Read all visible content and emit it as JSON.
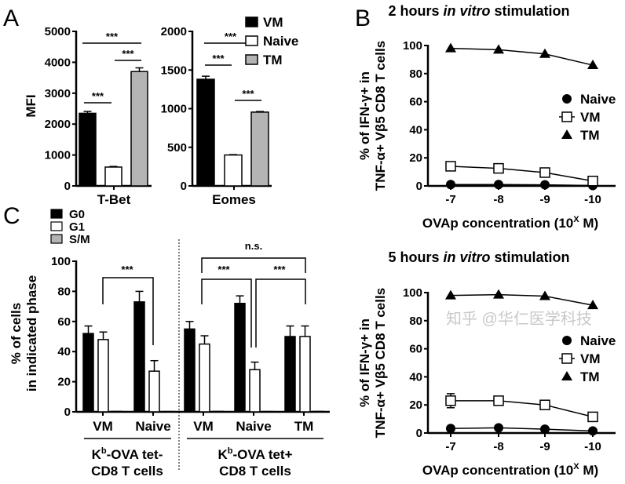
{
  "panel_labels": {
    "a": "A",
    "b": "B",
    "c": "C"
  },
  "watermark": "知乎 @华仁医学科技",
  "colors": {
    "VM": "#000000",
    "Naive": "#ffffff",
    "TM": "#b4b4b4",
    "G0": "#000000",
    "G1": "#ffffff",
    "S/M": "#b4b4b4"
  },
  "chart_data": [
    {
      "id": "A-tbet",
      "type": "bar",
      "ylabel": "MFI",
      "categories": [
        "T-Bet"
      ],
      "series": [
        {
          "name": "VM",
          "values": [
            2350
          ],
          "error": [
            60
          ]
        },
        {
          "name": "Naive",
          "values": [
            610
          ],
          "error": [
            20
          ]
        },
        {
          "name": "TM",
          "values": [
            3700
          ],
          "error": [
            120
          ]
        }
      ],
      "ylim": [
        0,
        5000
      ],
      "yticks": [
        "0",
        "1000",
        "2000",
        "3000",
        "4000",
        "5000"
      ],
      "significance": [
        {
          "pair": [
            "VM",
            "Naive"
          ],
          "label": "***"
        },
        {
          "pair": [
            "Naive",
            "TM"
          ],
          "label": "***"
        },
        {
          "pair": [
            "VM",
            "TM"
          ],
          "label": "***"
        }
      ]
    },
    {
      "id": "A-eomes",
      "type": "bar",
      "categories": [
        "Eomes"
      ],
      "series": [
        {
          "name": "VM",
          "values": [
            1380
          ],
          "error": [
            40
          ]
        },
        {
          "name": "Naive",
          "values": [
            400
          ],
          "error": [
            5
          ]
        },
        {
          "name": "TM",
          "values": [
            955
          ],
          "error": [
            8
          ]
        }
      ],
      "ylim": [
        0,
        2000
      ],
      "yticks": [
        "0",
        "500",
        "1000",
        "1500",
        "2000"
      ],
      "legend": [
        "VM",
        "Naive",
        "TM"
      ],
      "legend_position": "right",
      "significance": [
        {
          "pair": [
            "VM",
            "Naive"
          ],
          "label": "***"
        },
        {
          "pair": [
            "Naive",
            "TM"
          ],
          "label": "***"
        },
        {
          "pair": [
            "VM",
            "TM"
          ],
          "label": "***"
        }
      ]
    },
    {
      "id": "B-2h",
      "type": "line",
      "title_parts": [
        "2 hours ",
        "in vitro",
        " stimulation"
      ],
      "xlabel": "OVAp concentration (10",
      "xlabel_sup": "X",
      "xlabel_end": " M)",
      "ylabel_lines": [
        "% of IFN-γ+ in",
        "TNF-α+ Vβ5 CD8 T cells"
      ],
      "x": [
        "-7",
        "-8",
        "-9",
        "-10"
      ],
      "ylim": [
        0,
        100
      ],
      "yticks": [
        "0",
        "20",
        "40",
        "60",
        "80",
        "100"
      ],
      "legend_position": "right",
      "series": [
        {
          "name": "Naive",
          "marker": "circle",
          "values": [
            1,
            1,
            0.8,
            0.3
          ]
        },
        {
          "name": "VM",
          "marker": "open-square",
          "values": [
            14,
            12.5,
            9.5,
            3.5
          ]
        },
        {
          "name": "TM",
          "marker": "triangle",
          "values": [
            98,
            97,
            94,
            86
          ]
        }
      ]
    },
    {
      "id": "B-5h",
      "type": "line",
      "title_parts": [
        "5 hours ",
        "in vitro",
        " stimulation"
      ],
      "xlabel": "OVAp concentration (10",
      "xlabel_sup": "X",
      "xlabel_end": " M)",
      "ylabel_lines": [
        "% of IFN-γ+ in",
        "TNF-α+ Vβ5 CD8 T cells"
      ],
      "x": [
        "-7",
        "-8",
        "-9",
        "-10"
      ],
      "ylim": [
        0,
        100
      ],
      "yticks": [
        "0",
        "20",
        "40",
        "60",
        "80",
        "100"
      ],
      "legend_position": "right",
      "series": [
        {
          "name": "Naive",
          "marker": "circle",
          "values": [
            3.2,
            3.7,
            2.7,
            1.5
          ]
        },
        {
          "name": "VM",
          "marker": "open-square",
          "values": [
            23,
            23,
            20,
            11.5
          ],
          "error": [
            5,
            0,
            0,
            0
          ]
        },
        {
          "name": "TM",
          "marker": "triangle",
          "values": [
            98,
            98.5,
            97.5,
            91
          ]
        }
      ]
    },
    {
      "id": "C",
      "type": "bar",
      "ylabel_lines": [
        "% of cells",
        "in indicated phase"
      ],
      "ylim": [
        0,
        100
      ],
      "yticks": [
        "0",
        "20",
        "40",
        "60",
        "80",
        "100"
      ],
      "legend": [
        "G0",
        "G1",
        "S/M"
      ],
      "legend_position": "top-left",
      "categories": [
        "VM",
        "Naive",
        "VM",
        "Naive",
        "TM"
      ],
      "groups": [
        {
          "label_main": "K",
          "label_sup": "b",
          "label_rest": "-OVA tet-",
          "label_line2": "CD8 T cells",
          "categories": [
            0,
            1
          ]
        },
        {
          "label_main": "K",
          "label_sup": "b",
          "label_rest": "-OVA tet+",
          "label_line2": "CD8 T cells",
          "categories": [
            2,
            3,
            4
          ]
        }
      ],
      "series": [
        {
          "name": "G0",
          "values": [
            52,
            73,
            55,
            72,
            50
          ],
          "error": [
            5,
            7,
            5,
            5,
            7
          ]
        },
        {
          "name": "G1",
          "values": [
            48,
            27,
            45,
            28,
            50
          ],
          "error": [
            5,
            7,
            5.5,
            5,
            7
          ]
        },
        {
          "name": "S/M",
          "values": [
            0.3,
            0.2,
            0.3,
            0.2,
            0.3
          ],
          "error": [
            0,
            0,
            0,
            0,
            0
          ]
        }
      ],
      "significance": [
        {
          "pair": [
            "VM",
            "Naive"
          ],
          "group": 0,
          "label": "***"
        },
        {
          "pair": [
            "VM",
            "Naive"
          ],
          "group": 1,
          "label": "***"
        },
        {
          "pair": [
            "Naive",
            "TM"
          ],
          "group": 1,
          "label": "***"
        },
        {
          "pair": [
            "VM",
            "TM"
          ],
          "group": 1,
          "label": "n.s."
        }
      ]
    }
  ]
}
